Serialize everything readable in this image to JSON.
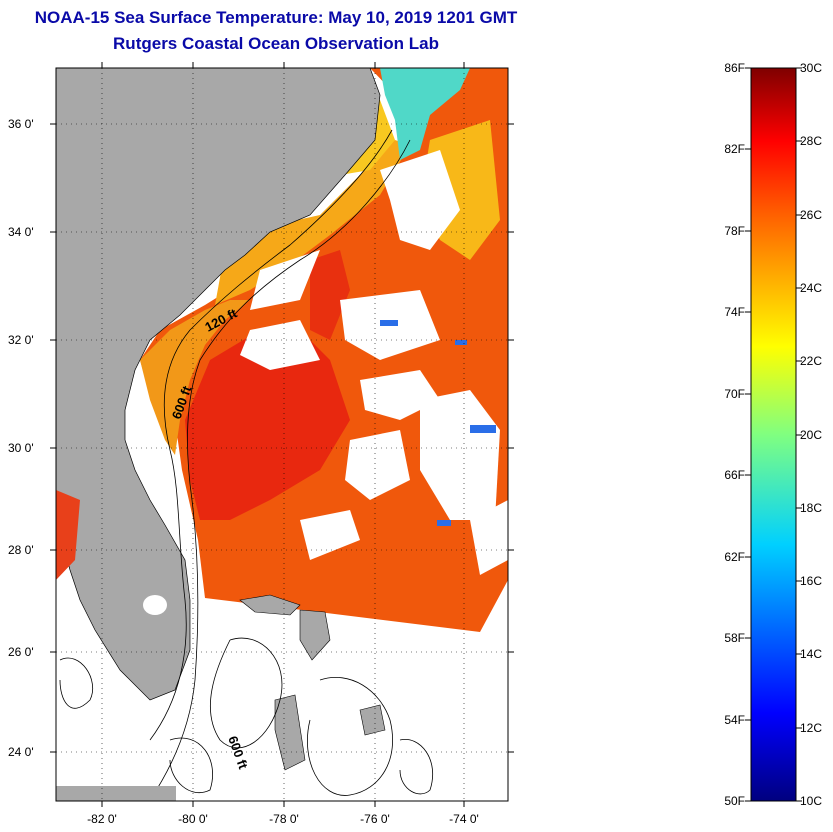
{
  "title": {
    "line1": "NOAA-15 Sea Surface Temperature:  May 10, 2019 1201 GMT",
    "line2": "Rutgers Coastal Ocean Observation Lab"
  },
  "map": {
    "lon_range": [
      -83,
      -73
    ],
    "lat_range": [
      23,
      37
    ],
    "lat_labels": [
      "36 0'",
      "34 0'",
      "32 0'",
      "30 0'",
      "28 0'",
      "26 0'",
      "24 0'"
    ],
    "lon_labels": [
      "-82 0'",
      "-80 0'",
      "-78 0'",
      "-76 0'",
      "-74 0'"
    ],
    "contour_labels": [
      "120 ft",
      "600 ft",
      "600 ft"
    ]
  },
  "colorbar": {
    "fahrenheit_labels": [
      "86F",
      "82F",
      "78F",
      "74F",
      "70F",
      "66F",
      "62F",
      "58F",
      "54F",
      "50F"
    ],
    "celsius_labels": [
      "30C",
      "28C",
      "26C",
      "24C",
      "22C",
      "20C",
      "18C",
      "16C",
      "14C",
      "12C",
      "10C"
    ],
    "range_celsius": [
      10,
      30
    ]
  },
  "colors": {
    "title": "#0a0aa8",
    "land": "#a8a8a8",
    "warm": "#e8280f"
  }
}
